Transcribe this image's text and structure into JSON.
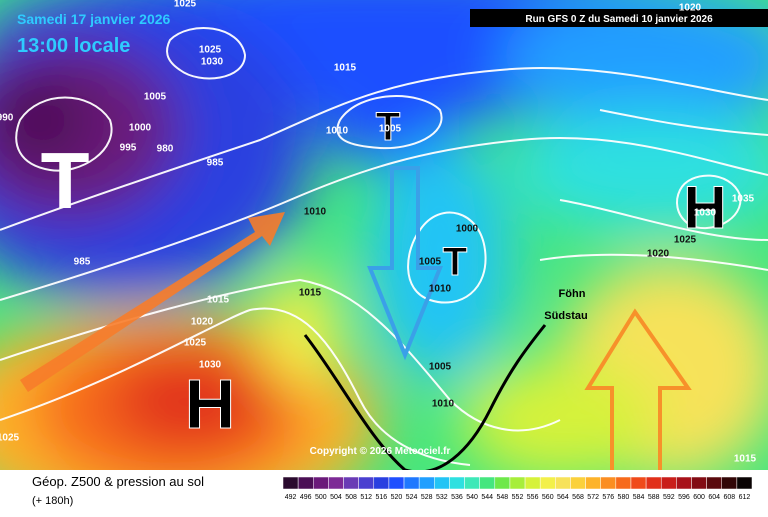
{
  "header": {
    "valid_date": "Samedi 17 janvier 2026",
    "local_time": "13:00 locale",
    "run": "Run GFS 0 Z du Samedi 10 janvier 2026"
  },
  "map": {
    "pressure_centers": [
      "T",
      "T",
      "T",
      "H",
      "H"
    ],
    "isobar_labels": [
      1025,
      1030,
      1025,
      1005,
      1000,
      995,
      980,
      985,
      985,
      990,
      1015,
      1010,
      1005,
      1010,
      1000,
      1005,
      1010,
      1015,
      1015,
      1020,
      1025,
      1030,
      1025,
      1005,
      1010,
      1020,
      1035,
      1030,
      1025,
      1020,
      1015
    ],
    "annotations": [
      "Föhn",
      "Südstau"
    ],
    "copyright": "Copyright © 2026 Meteociel.fr"
  },
  "legend": {
    "title": "Géop. Z500 & pression au sol",
    "lead_time": "(+ 180h)",
    "levels": [
      492,
      496,
      500,
      504,
      508,
      512,
      516,
      520,
      524,
      528,
      532,
      536,
      540,
      544,
      548,
      552,
      556,
      560,
      564,
      568,
      572,
      576,
      580,
      584,
      588,
      592,
      596,
      600,
      604,
      608,
      612
    ],
    "colors": [
      "#2a0a2e",
      "#4b0f55",
      "#6b1a7a",
      "#7d2a96",
      "#6a3bb5",
      "#4a3fd0",
      "#2a3fe0",
      "#1f4fff",
      "#1f78ff",
      "#209fff",
      "#22c4f5",
      "#2ee0e0",
      "#3ee8b8",
      "#45e67f",
      "#6ee84a",
      "#a7ee3a",
      "#d6f23a",
      "#f3f04a",
      "#f7e25a",
      "#fbd13c",
      "#fdb32a",
      "#fb8e22",
      "#f76a1c",
      "#f04a1a",
      "#e1301a",
      "#c91e1a",
      "#a8121a",
      "#830c14",
      "#5a0a0e",
      "#320607",
      "#0a0303"
    ]
  }
}
